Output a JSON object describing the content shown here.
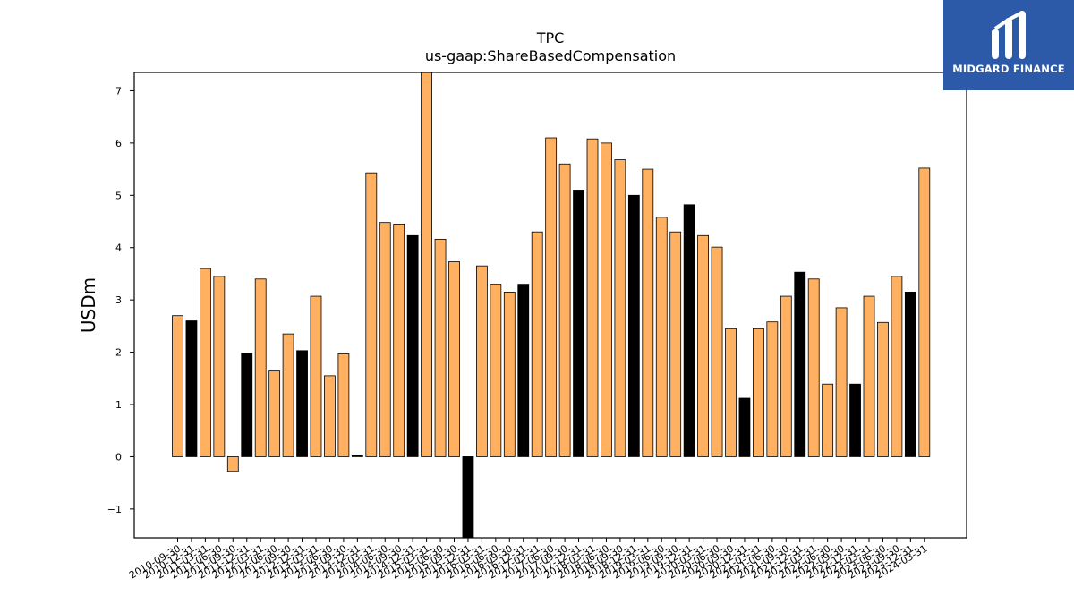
{
  "chart_data": {
    "type": "bar",
    "title": "TPC",
    "subtitle": "us-gaap:ShareBasedCompensation",
    "ylabel": "USDm",
    "xlabel": "",
    "ylim": [
      -1.55,
      7.35
    ],
    "yticks": [
      -1,
      0,
      1,
      2,
      3,
      4,
      5,
      6,
      7
    ],
    "grid": false,
    "colors": {
      "quarter": "#ffb060",
      "year_end": "#000000",
      "edge": "#000000"
    },
    "categories": [
      "2010-09-30",
      "2010-12-31",
      "2011-03-31",
      "2011-06-30",
      "2011-09-30",
      "2011-12-31",
      "2012-03-31",
      "2012-06-30",
      "2012-09-30",
      "2012-12-31",
      "2013-03-31",
      "2013-06-30",
      "2013-09-30",
      "2013-12-31",
      "2014-03-31",
      "2014-06-30",
      "2014-09-30",
      "2014-12-31",
      "2015-03-31",
      "2015-06-30",
      "2015-09-30",
      "2015-12-31",
      "2016-03-31",
      "2016-06-30",
      "2016-09-30",
      "2016-12-31",
      "2017-03-31",
      "2017-06-30",
      "2017-09-30",
      "2017-12-31",
      "2018-03-31",
      "2018-06-30",
      "2018-09-30",
      "2018-12-31",
      "2019-03-31",
      "2019-06-30",
      "2019-09-30",
      "2019-12-31",
      "2020-03-31",
      "2020-06-30",
      "2020-09-30",
      "2020-12-31",
      "2021-03-31",
      "2021-06-30",
      "2021-09-30",
      "2021-12-31",
      "2022-03-31",
      "2022-06-30",
      "2022-09-30",
      "2022-12-31",
      "2023-03-31",
      "2023-06-30",
      "2023-09-30",
      "2023-12-31",
      "2024-03-31"
    ],
    "values": [
      2.7,
      2.6,
      3.6,
      3.45,
      -0.28,
      1.98,
      3.4,
      1.64,
      2.35,
      2.03,
      3.07,
      1.55,
      1.97,
      0.02,
      5.43,
      4.48,
      4.45,
      4.23,
      7.4,
      4.16,
      3.73,
      -1.6,
      3.65,
      3.3,
      3.15,
      3.3,
      4.3,
      6.1,
      5.6,
      5.1,
      6.08,
      6.0,
      5.68,
      5.0,
      5.5,
      4.58,
      4.3,
      4.82,
      4.23,
      4.01,
      2.45,
      1.12,
      2.45,
      2.58,
      3.07,
      3.53,
      3.4,
      1.39,
      2.85,
      1.39,
      3.07,
      2.57,
      3.45,
      3.15,
      5.52
    ],
    "highlight": [
      false,
      true,
      false,
      false,
      false,
      true,
      false,
      false,
      false,
      true,
      false,
      false,
      false,
      true,
      false,
      false,
      false,
      true,
      false,
      false,
      false,
      true,
      false,
      false,
      false,
      true,
      false,
      false,
      false,
      true,
      false,
      false,
      false,
      true,
      false,
      false,
      false,
      true,
      false,
      false,
      false,
      true,
      false,
      false,
      false,
      true,
      false,
      false,
      false,
      true,
      false,
      false,
      false,
      true,
      false
    ]
  },
  "logo": {
    "text": "MIDGARD FINANCE"
  }
}
